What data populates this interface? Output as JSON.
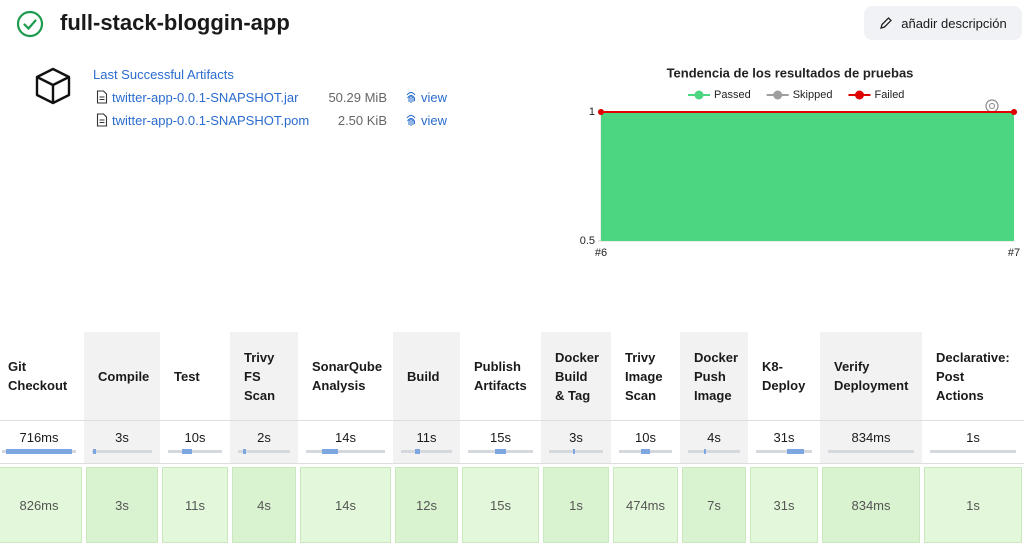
{
  "header": {
    "title": "full-stack-bloggin-app",
    "button": "añadir descripción"
  },
  "artifacts": {
    "title": "Last Successful Artifacts",
    "files": [
      {
        "name": "twitter-app-0.0.1-SNAPSHOT.jar",
        "size": "50.29 MiB",
        "action": "view"
      },
      {
        "name": "twitter-app-0.0.1-SNAPSHOT.pom",
        "size": "2.50 KiB",
        "action": "view"
      }
    ]
  },
  "chart_data": {
    "type": "area",
    "stacked": true,
    "title": "Tendencia de los resultados de pruebas",
    "categories": [
      "#6",
      "#7"
    ],
    "series": [
      {
        "name": "Passed",
        "color": "#4cd681",
        "values": [
          1,
          1
        ]
      },
      {
        "name": "Skipped",
        "color": "#9e9e9e",
        "values": [
          0,
          0
        ]
      },
      {
        "name": "Failed",
        "color": "#e00000",
        "values": [
          0,
          0
        ]
      }
    ],
    "ylim": [
      0.5,
      1
    ],
    "yticks": [
      0.5,
      1
    ],
    "legend": "top"
  },
  "stage_view": {
    "stages": [
      {
        "name": "Git Checkout",
        "average": "716ms",
        "build": "826ms"
      },
      {
        "name": "Compile",
        "average": "3s",
        "build": "3s"
      },
      {
        "name": "Test",
        "average": "10s",
        "build": "11s"
      },
      {
        "name": "Trivy FS Scan",
        "average": "2s",
        "build": "4s"
      },
      {
        "name": "SonarQube Analysis",
        "average": "14s",
        "build": "14s"
      },
      {
        "name": "Build",
        "average": "11s",
        "build": "12s"
      },
      {
        "name": "Publish Artifacts",
        "average": "15s",
        "build": "15s"
      },
      {
        "name": "Docker Build & Tag",
        "average": "3s",
        "build": "1s"
      },
      {
        "name": "Trivy Image Scan",
        "average": "10s",
        "build": "474ms"
      },
      {
        "name": "Docker Push Image",
        "average": "4s",
        "build": "7s"
      },
      {
        "name": "K8-Deploy",
        "average": "31s",
        "build": "31s"
      },
      {
        "name": "Verify Deployment",
        "average": "834ms",
        "build": "834ms"
      },
      {
        "name": "Declarative: Post Actions",
        "average": "1s",
        "build": "1s"
      }
    ]
  }
}
